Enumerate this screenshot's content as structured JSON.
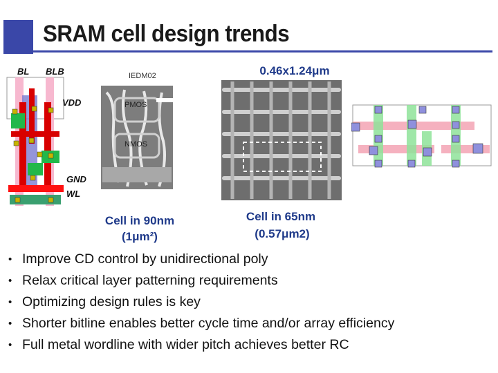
{
  "slide": {
    "title": "SRAM cell design trends"
  },
  "layout_labels": {
    "bl": "BL",
    "blb": "BLB",
    "vdd": "VDD",
    "gnd": "GND",
    "wl": "WL"
  },
  "micrograph_90nm": {
    "source": "IEDM02",
    "pmos": "PMOS",
    "nmos": "NMOS",
    "caption_line1": "Cell in 90nm",
    "caption_line2": "(1μm²)"
  },
  "micrograph_65nm": {
    "dimension": "0.46x1.24μm",
    "caption_line1": "Cell in 65nm",
    "caption_line2": "(0.57μm2)"
  },
  "bullets": [
    "Improve CD control by unidirectional poly",
    "Relax critical layer patterning requirements",
    "Optimizing design rules is key",
    "Shorter bitline enables better cycle time and/or array efficiency",
    "Full metal wordline with wider pitch achieves better RC"
  ],
  "colors": {
    "accent": "#3a47a8",
    "caption": "#1f3a8a",
    "poly": "#e00000",
    "active": "#22aa44",
    "metal": "#f6a0c0",
    "contact": "#6a6acc"
  }
}
